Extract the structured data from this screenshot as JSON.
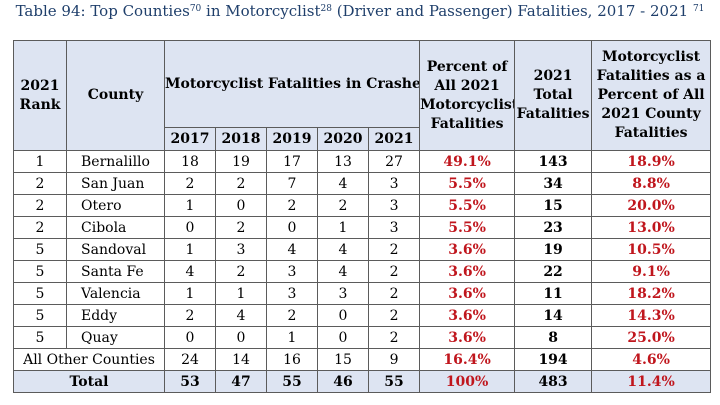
{
  "caption": {
    "text": "Table 94: Top Counties",
    "sup1": "70",
    "mid": " in Motorcyclist",
    "sup2": "28",
    "rest": " (Driver and Passenger) Fatalities, 2017 - 2021 ",
    "sup3": "71"
  },
  "headers": {
    "rank": "2021 Rank",
    "county": "County",
    "fatalities_group": "Motorcyclist Fatalities in Crashes",
    "years": [
      "2017",
      "2018",
      "2019",
      "2020",
      "2021"
    ],
    "percent": "Percent of All 2021 Motorcyclist Fatalities",
    "total": "2021 Total Fatalities",
    "percent_county": "Motorcyclist Fatalities as a Percent of All 2021 County Fatalities"
  },
  "rows": [
    {
      "rank": "1",
      "county": "Bernalillo",
      "y2017": "18",
      "y2018": "19",
      "y2019": "17",
      "y2020": "13",
      "y2021": "27",
      "pct": "49.1%",
      "total": "143",
      "pct_county": "18.9%"
    },
    {
      "rank": "2",
      "county": "San Juan",
      "y2017": "2",
      "y2018": "2",
      "y2019": "7",
      "y2020": "4",
      "y2021": "3",
      "pct": "5.5%",
      "total": "34",
      "pct_county": "8.8%"
    },
    {
      "rank": "2",
      "county": "Otero",
      "y2017": "1",
      "y2018": "0",
      "y2019": "2",
      "y2020": "2",
      "y2021": "3",
      "pct": "5.5%",
      "total": "15",
      "pct_county": "20.0%"
    },
    {
      "rank": "2",
      "county": "Cibola",
      "y2017": "0",
      "y2018": "2",
      "y2019": "0",
      "y2020": "1",
      "y2021": "3",
      "pct": "5.5%",
      "total": "23",
      "pct_county": "13.0%"
    },
    {
      "rank": "5",
      "county": "Sandoval",
      "y2017": "1",
      "y2018": "3",
      "y2019": "4",
      "y2020": "4",
      "y2021": "2",
      "pct": "3.6%",
      "total": "19",
      "pct_county": "10.5%"
    },
    {
      "rank": "5",
      "county": "Santa Fe",
      "y2017": "4",
      "y2018": "2",
      "y2019": "3",
      "y2020": "4",
      "y2021": "2",
      "pct": "3.6%",
      "total": "22",
      "pct_county": "9.1%"
    },
    {
      "rank": "5",
      "county": "Valencia",
      "y2017": "1",
      "y2018": "1",
      "y2019": "3",
      "y2020": "3",
      "y2021": "2",
      "pct": "3.6%",
      "total": "11",
      "pct_county": "18.2%"
    },
    {
      "rank": "5",
      "county": "Eddy",
      "y2017": "2",
      "y2018": "4",
      "y2019": "2",
      "y2020": "0",
      "y2021": "2",
      "pct": "3.6%",
      "total": "14",
      "pct_county": "14.3%"
    },
    {
      "rank": "5",
      "county": "Quay",
      "y2017": "0",
      "y2018": "0",
      "y2019": "1",
      "y2020": "0",
      "y2021": "2",
      "pct": "3.6%",
      "total": "8",
      "pct_county": "25.0%"
    }
  ],
  "other": {
    "label": "All Other Counties",
    "y2017": "24",
    "y2018": "14",
    "y2019": "16",
    "y2020": "15",
    "y2021": "9",
    "pct": "16.4%",
    "total": "194",
    "pct_county": "4.6%"
  },
  "total_row": {
    "label": "Total",
    "y2017": "53",
    "y2018": "47",
    "y2019": "55",
    "y2020": "46",
    "y2021": "55",
    "pct": "100%",
    "total": "483",
    "pct_county": "11.4%"
  },
  "colors": {
    "caption": "#1f3f6b",
    "header_bg": "#dde4f2",
    "percent_red": "#c0161d",
    "border": "#5b5b5b"
  }
}
